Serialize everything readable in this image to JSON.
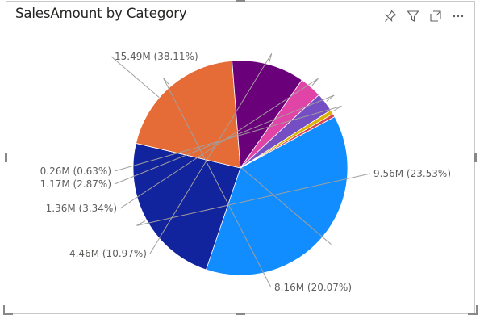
{
  "visual": {
    "title": "SalesAmount by Category"
  },
  "header_icons": [
    {
      "name": "pin-icon"
    },
    {
      "name": "filter-icon"
    },
    {
      "name": "focus-mode-icon"
    },
    {
      "name": "more-options-icon"
    }
  ],
  "chart_data": {
    "type": "pie",
    "title": "SalesAmount by Category",
    "slices": [
      {
        "value": 15.49,
        "label": "15.49M (38.11%)",
        "percent": 38.11,
        "color": "#118dff"
      },
      {
        "value": 9.56,
        "label": "9.56M (23.53%)",
        "percent": 23.53,
        "color": "#12239e"
      },
      {
        "value": 8.16,
        "label": "8.16M (20.07%)",
        "percent": 20.07,
        "color": "#e66c37"
      },
      {
        "value": 4.46,
        "label": "4.46M (10.97%)",
        "percent": 10.97,
        "color": "#6b007b"
      },
      {
        "value": 1.36,
        "label": "1.36M (3.34%)",
        "percent": 3.34,
        "color": "#e044a7"
      },
      {
        "value": 1.17,
        "label": "1.17M (2.87%)",
        "percent": 2.87,
        "color": "#744ec2"
      },
      {
        "value": 0.26,
        "label": "0.26M (0.63%)",
        "percent": 0.63,
        "color": "#d9b300"
      },
      {
        "value": 0.2,
        "label": "",
        "percent": 0.49,
        "color": "#d64550"
      }
    ],
    "units": "M"
  }
}
